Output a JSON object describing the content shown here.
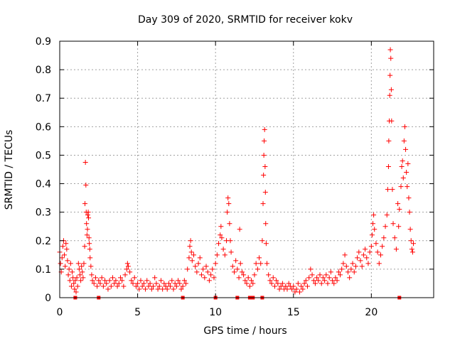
{
  "chart_data": {
    "type": "scatter",
    "title": "Day 309 of 2020, SRMTID for receiver kokv",
    "xlabel": "GPS time / hours",
    "ylabel": "SRMTID / TECUs",
    "xlim": [
      0,
      24
    ],
    "ylim": [
      0,
      0.9
    ],
    "xticks": [
      0,
      5,
      10,
      15,
      20
    ],
    "xtick_labels": [
      "0",
      "5",
      "10",
      "15",
      "20"
    ],
    "yticks": [
      0,
      0.1,
      0.2,
      0.3,
      0.4,
      0.5,
      0.6,
      0.7,
      0.8,
      0.9
    ],
    "ytick_labels": [
      "0",
      "0.1",
      "0.2",
      "0.3",
      "0.4",
      "0.5",
      "0.6",
      "0.7",
      "0.8",
      "0.9"
    ],
    "grid": true,
    "series": [
      {
        "name": "SRMTID",
        "marker": "plus",
        "color": "#ff0000",
        "points": [
          [
            0.0,
            0.16
          ],
          [
            0.05,
            0.12
          ],
          [
            0.1,
            0.09
          ],
          [
            0.15,
            0.14
          ],
          [
            0.2,
            0.18
          ],
          [
            0.25,
            0.2
          ],
          [
            0.3,
            0.15
          ],
          [
            0.35,
            0.11
          ],
          [
            0.4,
            0.19
          ],
          [
            0.45,
            0.17
          ],
          [
            0.5,
            0.13
          ],
          [
            0.55,
            0.08
          ],
          [
            0.6,
            0.1
          ],
          [
            0.65,
            0.06
          ],
          [
            0.7,
            0.12
          ],
          [
            0.75,
            0.04
          ],
          [
            0.8,
            0.09
          ],
          [
            0.85,
            0.07
          ],
          [
            0.9,
            0.05
          ],
          [
            0.95,
            0.03
          ],
          [
            1.0,
            0.06
          ],
          [
            1.05,
            0.02
          ],
          [
            1.1,
            0.07
          ],
          [
            1.15,
            0.04
          ],
          [
            1.2,
            0.12
          ],
          [
            1.25,
            0.1
          ],
          [
            1.3,
            0.08
          ],
          [
            1.35,
            0.06
          ],
          [
            1.4,
            0.11
          ],
          [
            1.45,
            0.09
          ],
          [
            1.5,
            0.07
          ],
          [
            1.55,
            0.12
          ],
          [
            1.6,
            0.18
          ],
          [
            1.62,
            0.33
          ],
          [
            1.65,
            0.475
          ],
          [
            1.68,
            0.395
          ],
          [
            1.7,
            0.3
          ],
          [
            1.72,
            0.26
          ],
          [
            1.75,
            0.22
          ],
          [
            1.78,
            0.24
          ],
          [
            1.8,
            0.29
          ],
          [
            1.83,
            0.3
          ],
          [
            1.85,
            0.28
          ],
          [
            1.88,
            0.21
          ],
          [
            1.9,
            0.19
          ],
          [
            1.93,
            0.17
          ],
          [
            1.95,
            0.14
          ],
          [
            2.0,
            0.11
          ],
          [
            2.05,
            0.08
          ],
          [
            2.1,
            0.06
          ],
          [
            2.2,
            0.05
          ],
          [
            2.3,
            0.07
          ],
          [
            2.4,
            0.04
          ],
          [
            2.5,
            0.06
          ],
          [
            2.6,
            0.05
          ],
          [
            2.7,
            0.07
          ],
          [
            2.8,
            0.04
          ],
          [
            2.9,
            0.06
          ],
          [
            3.0,
            0.05
          ],
          [
            3.1,
            0.03
          ],
          [
            3.2,
            0.06
          ],
          [
            3.3,
            0.04
          ],
          [
            3.4,
            0.07
          ],
          [
            3.5,
            0.05
          ],
          [
            3.6,
            0.06
          ],
          [
            3.7,
            0.04
          ],
          [
            3.8,
            0.05
          ],
          [
            3.9,
            0.07
          ],
          [
            4.0,
            0.06
          ],
          [
            4.1,
            0.04
          ],
          [
            4.2,
            0.08
          ],
          [
            4.3,
            0.1
          ],
          [
            4.35,
            0.12
          ],
          [
            4.4,
            0.11
          ],
          [
            4.5,
            0.09
          ],
          [
            4.6,
            0.06
          ],
          [
            4.7,
            0.05
          ],
          [
            4.8,
            0.07
          ],
          [
            4.9,
            0.04
          ],
          [
            5.0,
            0.05
          ],
          [
            5.1,
            0.03
          ],
          [
            5.2,
            0.06
          ],
          [
            5.3,
            0.04
          ],
          [
            5.4,
            0.05
          ],
          [
            5.5,
            0.03
          ],
          [
            5.6,
            0.06
          ],
          [
            5.7,
            0.04
          ],
          [
            5.8,
            0.05
          ],
          [
            5.9,
            0.03
          ],
          [
            6.0,
            0.04
          ],
          [
            6.1,
            0.07
          ],
          [
            6.2,
            0.05
          ],
          [
            6.3,
            0.03
          ],
          [
            6.4,
            0.04
          ],
          [
            6.5,
            0.06
          ],
          [
            6.6,
            0.03
          ],
          [
            6.7,
            0.05
          ],
          [
            6.8,
            0.04
          ],
          [
            6.9,
            0.03
          ],
          [
            7.0,
            0.05
          ],
          [
            7.1,
            0.04
          ],
          [
            7.2,
            0.06
          ],
          [
            7.3,
            0.03
          ],
          [
            7.4,
            0.05
          ],
          [
            7.5,
            0.04
          ],
          [
            7.6,
            0.06
          ],
          [
            7.7,
            0.05
          ],
          [
            7.8,
            0.03
          ],
          [
            7.9,
            0.04
          ],
          [
            8.0,
            0.06
          ],
          [
            8.1,
            0.05
          ],
          [
            8.2,
            0.1
          ],
          [
            8.3,
            0.14
          ],
          [
            8.35,
            0.18
          ],
          [
            8.4,
            0.2
          ],
          [
            8.45,
            0.16
          ],
          [
            8.5,
            0.13
          ],
          [
            8.6,
            0.15
          ],
          [
            8.7,
            0.11
          ],
          [
            8.8,
            0.09
          ],
          [
            8.9,
            0.12
          ],
          [
            9.0,
            0.14
          ],
          [
            9.1,
            0.08
          ],
          [
            9.2,
            0.1
          ],
          [
            9.3,
            0.07
          ],
          [
            9.4,
            0.11
          ],
          [
            9.5,
            0.09
          ],
          [
            9.6,
            0.06
          ],
          [
            9.7,
            0.08
          ],
          [
            9.8,
            0.1
          ],
          [
            9.9,
            0.07
          ],
          [
            10.0,
            0.12
          ],
          [
            10.1,
            0.15
          ],
          [
            10.2,
            0.19
          ],
          [
            10.3,
            0.22
          ],
          [
            10.35,
            0.25
          ],
          [
            10.4,
            0.21
          ],
          [
            10.5,
            0.17
          ],
          [
            10.6,
            0.15
          ],
          [
            10.7,
            0.2
          ],
          [
            10.75,
            0.3
          ],
          [
            10.8,
            0.35
          ],
          [
            10.85,
            0.33
          ],
          [
            10.9,
            0.26
          ],
          [
            10.95,
            0.2
          ],
          [
            11.0,
            0.16
          ],
          [
            11.1,
            0.11
          ],
          [
            11.2,
            0.09
          ],
          [
            11.3,
            0.13
          ],
          [
            11.4,
            0.1
          ],
          [
            11.5,
            0.07
          ],
          [
            11.55,
            0.24
          ],
          [
            11.6,
            0.12
          ],
          [
            11.7,
            0.09
          ],
          [
            11.8,
            0.08
          ],
          [
            11.9,
            0.06
          ],
          [
            12.0,
            0.05
          ],
          [
            12.1,
            0.07
          ],
          [
            12.2,
            0.04
          ],
          [
            12.3,
            0.06
          ],
          [
            12.4,
            0.05
          ],
          [
            12.5,
            0.08
          ],
          [
            12.6,
            0.12
          ],
          [
            12.7,
            0.1
          ],
          [
            12.8,
            0.14
          ],
          [
            12.9,
            0.12
          ],
          [
            13.0,
            0.2
          ],
          [
            13.05,
            0.33
          ],
          [
            13.08,
            0.43
          ],
          [
            13.1,
            0.5
          ],
          [
            13.12,
            0.55
          ],
          [
            13.15,
            0.59
          ],
          [
            13.18,
            0.46
          ],
          [
            13.2,
            0.37
          ],
          [
            13.22,
            0.26
          ],
          [
            13.25,
            0.19
          ],
          [
            13.3,
            0.12
          ],
          [
            13.4,
            0.08
          ],
          [
            13.5,
            0.06
          ],
          [
            13.6,
            0.05
          ],
          [
            13.7,
            0.07
          ],
          [
            13.8,
            0.04
          ],
          [
            13.9,
            0.06
          ],
          [
            14.0,
            0.05
          ],
          [
            14.1,
            0.03
          ],
          [
            14.2,
            0.04
          ],
          [
            14.3,
            0.05
          ],
          [
            14.4,
            0.03
          ],
          [
            14.5,
            0.04
          ],
          [
            14.6,
            0.03
          ],
          [
            14.7,
            0.05
          ],
          [
            14.8,
            0.04
          ],
          [
            14.9,
            0.03
          ],
          [
            15.0,
            0.04
          ],
          [
            15.1,
            0.02
          ],
          [
            15.2,
            0.03
          ],
          [
            15.3,
            0.05
          ],
          [
            15.4,
            0.02
          ],
          [
            15.5,
            0.04
          ],
          [
            15.6,
            0.03
          ],
          [
            15.7,
            0.05
          ],
          [
            15.8,
            0.06
          ],
          [
            15.9,
            0.04
          ],
          [
            16.0,
            0.07
          ],
          [
            16.1,
            0.1
          ],
          [
            16.2,
            0.08
          ],
          [
            16.3,
            0.06
          ],
          [
            16.4,
            0.05
          ],
          [
            16.5,
            0.07
          ],
          [
            16.6,
            0.06
          ],
          [
            16.7,
            0.08
          ],
          [
            16.8,
            0.05
          ],
          [
            16.9,
            0.07
          ],
          [
            17.0,
            0.06
          ],
          [
            17.1,
            0.08
          ],
          [
            17.2,
            0.05
          ],
          [
            17.3,
            0.07
          ],
          [
            17.4,
            0.09
          ],
          [
            17.5,
            0.06
          ],
          [
            17.6,
            0.05
          ],
          [
            17.7,
            0.07
          ],
          [
            17.8,
            0.06
          ],
          [
            17.9,
            0.09
          ],
          [
            18.0,
            0.08
          ],
          [
            18.1,
            0.1
          ],
          [
            18.2,
            0.12
          ],
          [
            18.3,
            0.15
          ],
          [
            18.4,
            0.11
          ],
          [
            18.5,
            0.09
          ],
          [
            18.6,
            0.07
          ],
          [
            18.7,
            0.1
          ],
          [
            18.8,
            0.12
          ],
          [
            18.9,
            0.09
          ],
          [
            19.0,
            0.11
          ],
          [
            19.1,
            0.14
          ],
          [
            19.2,
            0.16
          ],
          [
            19.3,
            0.13
          ],
          [
            19.4,
            0.11
          ],
          [
            19.5,
            0.15
          ],
          [
            19.6,
            0.17
          ],
          [
            19.7,
            0.14
          ],
          [
            19.8,
            0.12
          ],
          [
            19.9,
            0.16
          ],
          [
            20.0,
            0.18
          ],
          [
            20.05,
            0.22
          ],
          [
            20.1,
            0.26
          ],
          [
            20.15,
            0.29
          ],
          [
            20.2,
            0.24
          ],
          [
            20.3,
            0.19
          ],
          [
            20.4,
            0.16
          ],
          [
            20.5,
            0.12
          ],
          [
            20.6,
            0.15
          ],
          [
            20.7,
            0.18
          ],
          [
            20.8,
            0.21
          ],
          [
            20.9,
            0.25
          ],
          [
            21.0,
            0.29
          ],
          [
            21.05,
            0.38
          ],
          [
            21.1,
            0.46
          ],
          [
            21.12,
            0.55
          ],
          [
            21.15,
            0.62
          ],
          [
            21.18,
            0.71
          ],
          [
            21.2,
            0.78
          ],
          [
            21.22,
            0.87
          ],
          [
            21.25,
            0.84
          ],
          [
            21.28,
            0.73
          ],
          [
            21.3,
            0.62
          ],
          [
            21.35,
            0.38
          ],
          [
            21.4,
            0.26
          ],
          [
            21.5,
            0.21
          ],
          [
            21.6,
            0.17
          ],
          [
            21.7,
            0.33
          ],
          [
            21.75,
            0.25
          ],
          [
            21.8,
            0.31
          ],
          [
            21.9,
            0.39
          ],
          [
            21.95,
            0.46
          ],
          [
            22.0,
            0.48
          ],
          [
            22.05,
            0.42
          ],
          [
            22.1,
            0.55
          ],
          [
            22.15,
            0.6
          ],
          [
            22.2,
            0.52
          ],
          [
            22.25,
            0.44
          ],
          [
            22.3,
            0.39
          ],
          [
            22.35,
            0.47
          ],
          [
            22.4,
            0.35
          ],
          [
            22.45,
            0.3
          ],
          [
            22.5,
            0.24
          ],
          [
            22.55,
            0.2
          ],
          [
            22.6,
            0.17
          ],
          [
            22.65,
            0.16
          ],
          [
            22.7,
            0.19
          ]
        ]
      }
    ],
    "zero_gap_markers": [
      1.0,
      2.5,
      7.9,
      10.0,
      11.4,
      12.2,
      12.4,
      13.0,
      21.8
    ],
    "zero_marker_symbol": "filled-square"
  }
}
